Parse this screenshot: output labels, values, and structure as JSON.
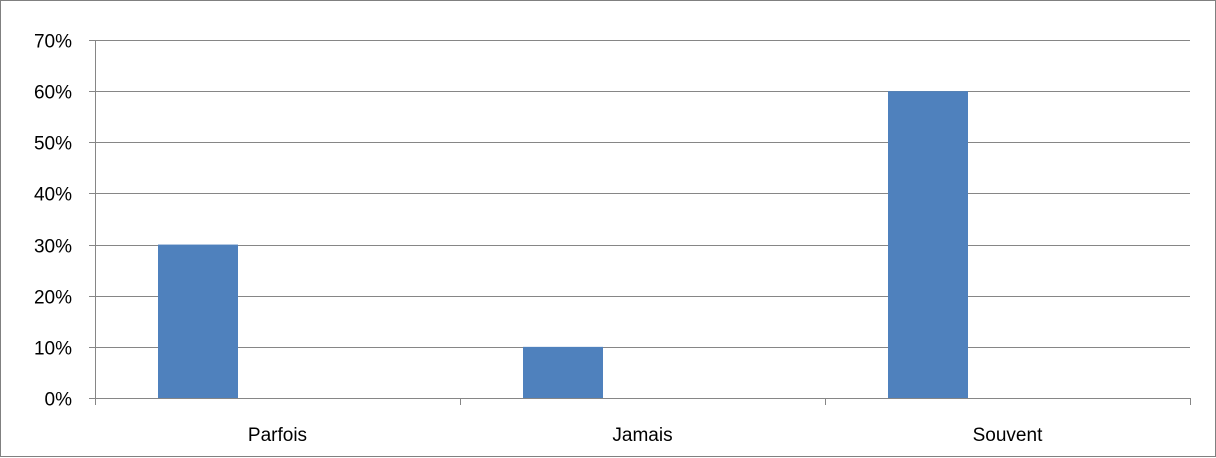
{
  "chart_data": {
    "type": "bar",
    "categories": [
      "Parfois",
      "Jamais",
      "Souvent"
    ],
    "values": [
      30,
      10,
      60
    ],
    "ylim": [
      0,
      70
    ],
    "yticks": [
      0,
      10,
      20,
      30,
      40,
      50,
      60,
      70
    ],
    "ytick_labels": [
      "0%",
      "10%",
      "20%",
      "30%",
      "40%",
      "50%",
      "60%",
      "70%"
    ],
    "title": "",
    "xlabel": "",
    "ylabel": "",
    "grid": true,
    "legend": "none",
    "bar_color": "#4f81bd",
    "grid_color": "#868686"
  }
}
